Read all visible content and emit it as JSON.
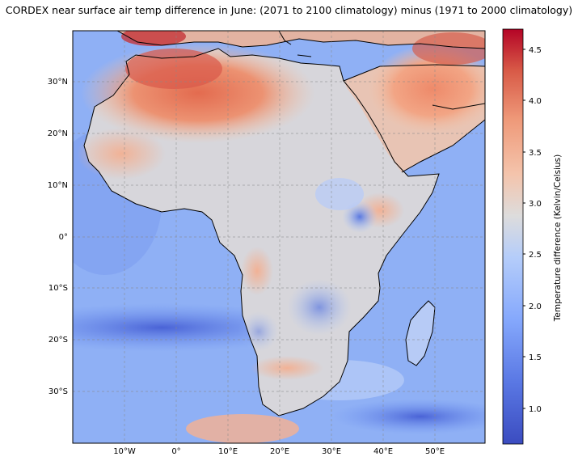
{
  "title": "CORDEX near surface air temp difference in June: (2071 to 2100 climatology) minus (1971 to 2000 climatology)",
  "map": {
    "lon_ticks": [
      "10°W",
      "0°",
      "10°E",
      "20°E",
      "30°E",
      "40°E",
      "50°E"
    ],
    "lat_ticks": [
      "30°N",
      "20°N",
      "10°N",
      "0°",
      "10°S",
      "20°S",
      "30°S"
    ],
    "gridlines": true,
    "gridline_style": "dashed",
    "colormap": "coolwarm",
    "coastline_color": "#000000"
  },
  "colorbar": {
    "label": "Temperature difference (Kelvin/Celsius)",
    "ticks": [
      "4.5",
      "4.0",
      "3.5",
      "3.0",
      "2.5",
      "2.0",
      "1.5",
      "1.0"
    ],
    "vmin": 0.65,
    "vmax": 4.7,
    "color_low": "#3b4cc0",
    "color_mid": "#dddddd",
    "color_high": "#b40426"
  }
}
